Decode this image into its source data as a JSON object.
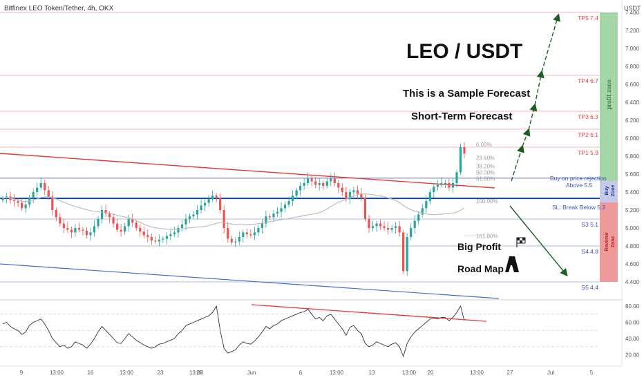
{
  "header": {
    "title": "Bitfinex LEO Token/Tether, 4h, OKX",
    "currency": "USDT"
  },
  "annotations": {
    "main_title": "LEO / USDT",
    "line1": "This is a Sample Forecast",
    "line2": "Short-Term Forecast",
    "brand1": "Big Profit",
    "brand2": "Road Map",
    "buy_text": "Buy on price rejection",
    "buy_level": "Above 5.5",
    "sl_text": "SL: Break Below 5.3"
  },
  "zones": {
    "profit": "profit zone",
    "buy": "Buy Zone",
    "reverse": "Reverse Zone"
  },
  "colors": {
    "up": "#26a69a",
    "down": "#ef5350",
    "target": "#e53935",
    "support": "#5b7bd6",
    "zone_green": "#a5d6a7",
    "zone_blue": "#c5cae9",
    "zone_red": "#ef9a9a",
    "arrow": "#1b5e20"
  },
  "chart_data": {
    "type": "candlestick",
    "title": "Bitfinex LEO Token/Tether, 4h, OKX",
    "y_axis": {
      "min": 4.2,
      "max": 7.5,
      "ticks": [
        "7.400",
        "7.200",
        "7.000",
        "6.800",
        "6.600",
        "6.400",
        "6.200",
        "6.000",
        "5.800",
        "5.600",
        "5.400",
        "5.200",
        "5.000",
        "4.800",
        "4.600",
        "4.400"
      ]
    },
    "x_ticks": [
      "9",
      "13:00",
      "16",
      "13:00",
      "23",
      "13:00",
      "27",
      "Jun",
      "6",
      "13:00",
      "13",
      "13:00",
      "20",
      "13:00",
      "27",
      "Jul",
      "5"
    ],
    "levels": [
      {
        "label": "TP5 7.4",
        "value": 7.4,
        "kind": "target"
      },
      {
        "label": "TP4 6.7",
        "value": 6.7,
        "kind": "target"
      },
      {
        "label": "TP3 6.3",
        "value": 6.3,
        "kind": "target"
      },
      {
        "label": "TP2 6.1",
        "value": 6.1,
        "kind": "target"
      },
      {
        "label": "TP1 5.9",
        "value": 5.9,
        "kind": "target"
      },
      {
        "label": "S3 5.1",
        "value": 5.1,
        "kind": "support"
      },
      {
        "label": "S4 4.8",
        "value": 4.8,
        "kind": "support"
      },
      {
        "label": "S5 4.4",
        "value": 4.4,
        "kind": "support"
      }
    ],
    "fib": [
      {
        "label": "0.00%",
        "value": 5.93
      },
      {
        "label": "23.60%",
        "value": 5.78
      },
      {
        "label": "38.20%",
        "value": 5.69
      },
      {
        "label": "50.00%",
        "value": 5.62
      },
      {
        "label": "61.80%",
        "value": 5.55
      },
      {
        "label": "100.00%",
        "value": 5.3
      },
      {
        "label": "161.80%",
        "value": 4.91
      }
    ],
    "rsi_ticks": [
      "80.00",
      "60.00",
      "40.00",
      "20.00"
    ],
    "series_close": [
      5.33,
      5.35,
      5.31,
      5.3,
      5.28,
      5.22,
      5.26,
      5.34,
      5.4,
      5.45,
      5.5,
      5.42,
      5.35,
      5.2,
      5.12,
      5.05,
      5.0,
      4.98,
      4.95,
      5.0,
      4.98,
      4.97,
      4.92,
      4.95,
      5.02,
      5.1,
      5.2,
      5.16,
      5.12,
      5.05,
      4.98,
      4.96,
      5.02,
      5.1,
      5.06,
      5.0,
      4.96,
      4.92,
      4.9,
      4.86,
      4.85,
      4.87,
      4.88,
      4.91,
      4.93,
      4.95,
      5.0,
      5.04,
      5.1,
      5.13,
      5.15,
      5.2,
      5.25,
      5.28,
      5.32,
      5.36,
      5.34,
      5.2,
      5.0,
      4.88,
      4.84,
      4.85,
      4.9,
      4.95,
      4.93,
      4.92,
      4.95,
      5.0,
      5.05,
      5.13,
      5.12,
      5.16,
      5.18,
      5.22,
      5.26,
      5.3,
      5.36,
      5.42,
      5.47,
      5.5,
      5.55,
      5.52,
      5.48,
      5.5,
      5.47,
      5.52,
      5.55,
      5.5,
      5.45,
      5.4,
      5.32,
      5.4,
      5.42,
      5.38,
      5.34,
      5.1,
      5.0,
      5.02,
      5.05,
      5.02,
      5.0,
      4.98,
      5.0,
      5.02,
      4.95,
      4.52,
      4.9,
      5.0,
      5.08,
      5.15,
      5.22,
      5.3,
      5.4,
      5.46,
      5.48,
      5.5,
      5.5,
      5.45,
      5.5,
      5.62,
      5.9,
      5.83
    ],
    "rsi_values": [
      58,
      60,
      55,
      52,
      50,
      45,
      48,
      56,
      60,
      62,
      64,
      58,
      50,
      40,
      35,
      30,
      32,
      28,
      30,
      36,
      34,
      32,
      28,
      33,
      40,
      48,
      55,
      50,
      45,
      40,
      35,
      34,
      40,
      46,
      42,
      38,
      35,
      32,
      30,
      28,
      30,
      33,
      34,
      36,
      38,
      40,
      46,
      50,
      56,
      58,
      60,
      62,
      64,
      66,
      68,
      72,
      80,
      50,
      28,
      22,
      24,
      26,
      32,
      36,
      34,
      33,
      37,
      42,
      48,
      55,
      52,
      56,
      58,
      62,
      64,
      66,
      68,
      70,
      72,
      73,
      76,
      70,
      64,
      66,
      62,
      68,
      70,
      64,
      58,
      52,
      44,
      54,
      56,
      50,
      46,
      34,
      30,
      32,
      36,
      34,
      32,
      30,
      33,
      35,
      30,
      18,
      34,
      42,
      48,
      52,
      56,
      60,
      64,
      65,
      64,
      66,
      66,
      62,
      66,
      72,
      80,
      62
    ]
  }
}
